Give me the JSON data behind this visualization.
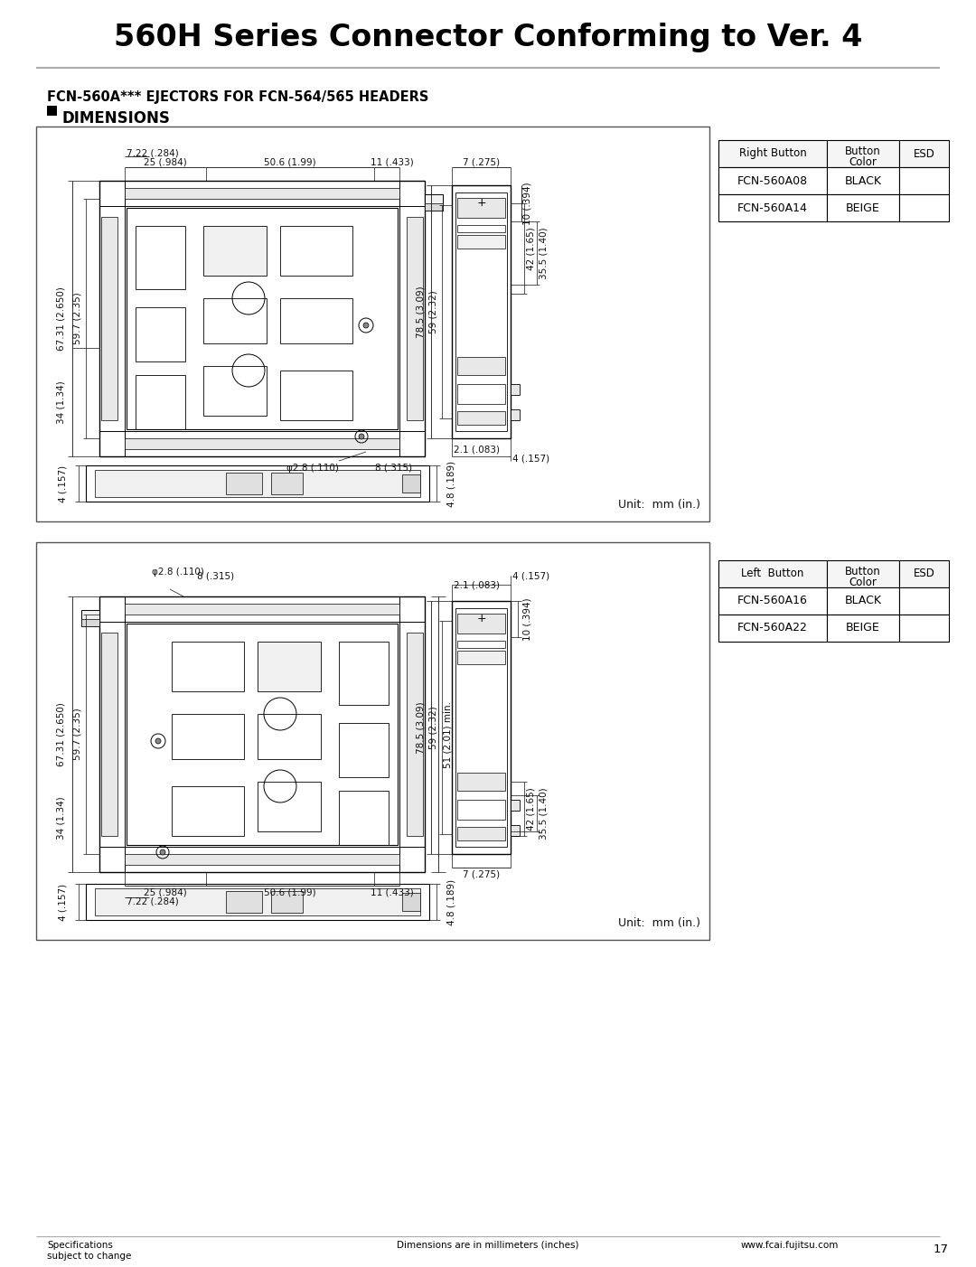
{
  "title": "560H Series Connector Conforming to Ver. 4",
  "section_label": "FCN-560A*** EJECTORS FOR FCN-564/565 HEADERS",
  "dimensions_label": "DIMENSIONS",
  "table1_header": [
    "Right Button",
    "Button\nColor",
    "ESD"
  ],
  "table1_rows": [
    [
      "FCN-560A08",
      "BLACK",
      ""
    ],
    [
      "FCN-560A14",
      "BEIGE",
      ""
    ]
  ],
  "table2_header": [
    "Left  Button",
    "Button\nColor",
    "ESD"
  ],
  "table2_rows": [
    [
      "FCN-560A16",
      "BLACK",
      ""
    ],
    [
      "FCN-560A22",
      "BEIGE",
      ""
    ]
  ],
  "unit_text": "Unit:  mm (in.)",
  "footer_left": "Specifications\nsubject to change",
  "footer_center": "Dimensions are in millimeters (inches)",
  "footer_right": "www.fcai.fujitsu.com",
  "footer_page": "17",
  "bg_color": "#ffffff",
  "title_fontsize": 24,
  "label_fontsize": 10,
  "dim_fontsize": 8,
  "table_fontsize": 9,
  "footer_fontsize": 8
}
